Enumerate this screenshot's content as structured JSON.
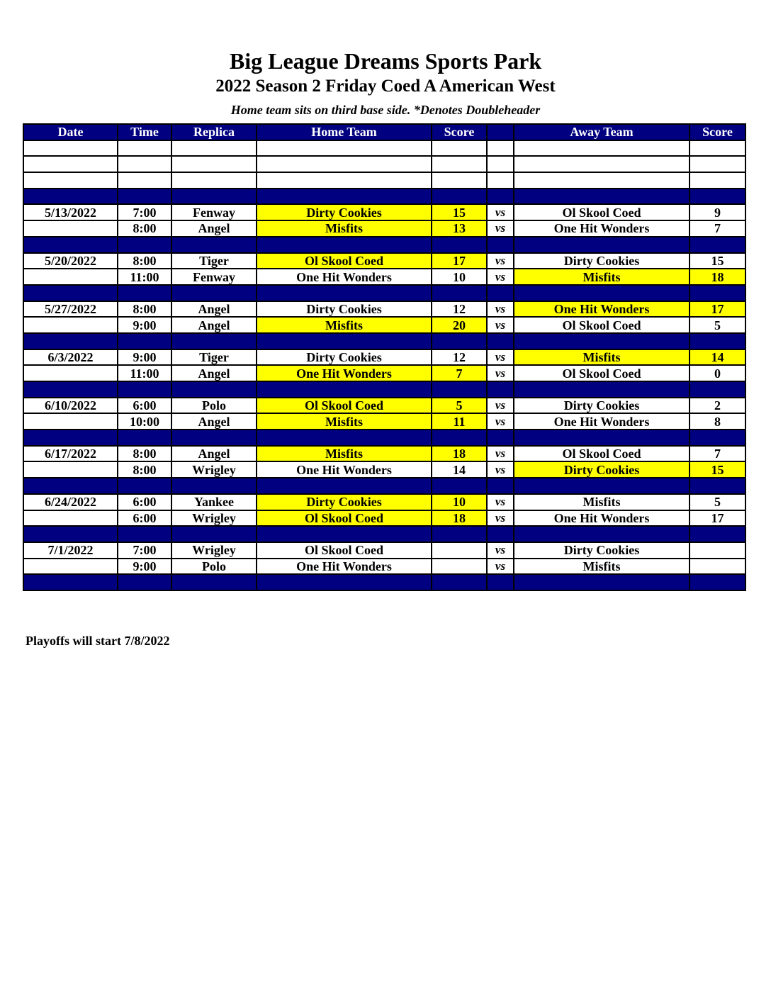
{
  "header": {
    "title": "Big League Dreams Sports Park",
    "subtitle": "2022 Season 2 Friday Coed A American West",
    "note": "Home team sits on third base side.  *Denotes Doubleheader"
  },
  "colors": {
    "header_bg": "#000080",
    "winner_highlight": "#ffff00"
  },
  "table": {
    "columns": [
      "Date",
      "Time",
      "Replica",
      "Home Team",
      "Score",
      "",
      "Away Team",
      "Score"
    ],
    "vs_label": "vs",
    "weeks": [
      {
        "date": "5/13/2022",
        "games": [
          {
            "time": "7:00",
            "replica": "Fenway",
            "home": "Dirty Cookies",
            "home_score": "15",
            "away": "Ol Skool Coed",
            "away_score": "9",
            "winner": "home"
          },
          {
            "time": "8:00",
            "replica": "Angel",
            "home": "Misfits",
            "home_score": "13",
            "away": "One Hit Wonders",
            "away_score": "7",
            "winner": "home"
          }
        ]
      },
      {
        "date": "5/20/2022",
        "games": [
          {
            "time": "8:00",
            "replica": "Tiger",
            "home": "Ol Skool Coed",
            "home_score": "17",
            "away": "Dirty Cookies",
            "away_score": "15",
            "winner": "home"
          },
          {
            "time": "11:00",
            "replica": "Fenway",
            "home": "One Hit Wonders",
            "home_score": "10",
            "away": "Misfits",
            "away_score": "18",
            "winner": "away"
          }
        ]
      },
      {
        "date": "5/27/2022",
        "games": [
          {
            "time": "8:00",
            "replica": "Angel",
            "home": "Dirty Cookies",
            "home_score": "12",
            "away": "One Hit Wonders",
            "away_score": "17",
            "winner": "away"
          },
          {
            "time": "9:00",
            "replica": "Angel",
            "home": "Misfits",
            "home_score": "20",
            "away": "Ol Skool Coed",
            "away_score": "5",
            "winner": "home"
          }
        ]
      },
      {
        "date": "6/3/2022",
        "games": [
          {
            "time": "9:00",
            "replica": "Tiger",
            "home": "Dirty Cookies",
            "home_score": "12",
            "away": "Misfits",
            "away_score": "14",
            "winner": "away"
          },
          {
            "time": "11:00",
            "replica": "Angel",
            "home": "One Hit Wonders",
            "home_score": "7",
            "away": "Ol Skool Coed",
            "away_score": "0",
            "winner": "home"
          }
        ]
      },
      {
        "date": "6/10/2022",
        "games": [
          {
            "time": "6:00",
            "replica": "Polo",
            "home": "Ol Skool Coed",
            "home_score": "5",
            "away": "Dirty Cookies",
            "away_score": "2",
            "winner": "home"
          },
          {
            "time": "10:00",
            "replica": "Angel",
            "home": "Misfits",
            "home_score": "11",
            "away": "One Hit Wonders",
            "away_score": "8",
            "winner": "home"
          }
        ]
      },
      {
        "date": "6/17/2022",
        "games": [
          {
            "time": "8:00",
            "replica": "Angel",
            "home": "Misfits",
            "home_score": "18",
            "away": "Ol Skool Coed",
            "away_score": "7",
            "winner": "home"
          },
          {
            "time": "8:00",
            "replica": "Wrigley",
            "home": "One Hit Wonders",
            "home_score": "14",
            "away": "Dirty Cookies",
            "away_score": "15",
            "winner": "away"
          }
        ]
      },
      {
        "date": "6/24/2022",
        "games": [
          {
            "time": "6:00",
            "replica": "Yankee",
            "home": "Dirty Cookies",
            "home_score": "10",
            "away": "Misfits",
            "away_score": "5",
            "winner": "home"
          },
          {
            "time": "6:00",
            "replica": "Wrigley",
            "home": "Ol Skool Coed",
            "home_score": "18",
            "away": "One Hit Wonders",
            "away_score": "17",
            "winner": "home"
          }
        ]
      },
      {
        "date": "7/1/2022",
        "games": [
          {
            "time": "7:00",
            "replica": "Wrigley",
            "home": "Ol Skool Coed",
            "home_score": "",
            "away": "Dirty Cookies",
            "away_score": "",
            "winner": ""
          },
          {
            "time": "9:00",
            "replica": "Polo",
            "home": "One Hit Wonders",
            "home_score": "",
            "away": "Misfits",
            "away_score": "",
            "winner": ""
          }
        ]
      }
    ]
  },
  "footer": {
    "playoffs_note": "Playoffs will start 7/8/2022"
  }
}
